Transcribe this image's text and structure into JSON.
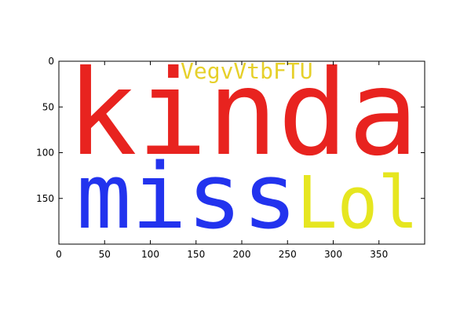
{
  "axes": {
    "x_ticks": [
      "0",
      "50",
      "100",
      "150",
      "200",
      "250",
      "300",
      "350"
    ],
    "y_ticks": [
      "0",
      "50",
      "100",
      "150"
    ],
    "xlim": [
      0,
      400
    ],
    "ylim": [
      200,
      0
    ]
  },
  "words": [
    {
      "text": "kinda",
      "color": "#e8231f"
    },
    {
      "text": "miss",
      "color": "#2233ee"
    },
    {
      "text": "Lol",
      "color": "#e6e620"
    },
    {
      "text": "VegvVtbFTU",
      "color": "#e6d02a"
    }
  ]
}
